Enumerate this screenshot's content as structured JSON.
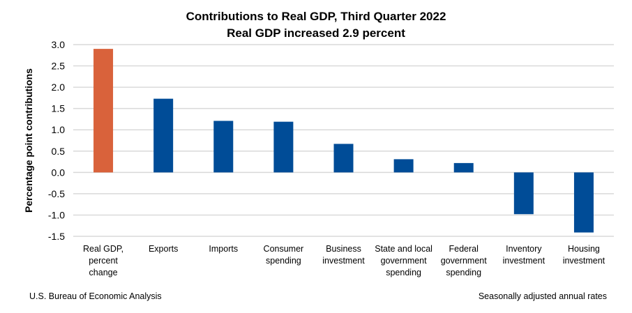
{
  "chart_data": {
    "type": "bar",
    "title": "Contributions to Real GDP, Third Quarter 2022",
    "subtitle": "Real GDP increased 2.9 percent",
    "xlabel": "",
    "ylabel": "Percentage point contributions",
    "ylim": [
      -1.5,
      3.0
    ],
    "yticks": [
      3.0,
      2.5,
      2.0,
      1.5,
      1.0,
      0.5,
      0.0,
      -0.5,
      -1.0,
      -1.5
    ],
    "grid": true,
    "categories": [
      [
        "Real GDP,",
        "percent",
        "change"
      ],
      [
        "Exports"
      ],
      [
        "Imports"
      ],
      [
        "Consumer",
        "spending"
      ],
      [
        "Business",
        "investment"
      ],
      [
        "State and local",
        "government",
        "spending"
      ],
      [
        "Federal",
        "government",
        "spending"
      ],
      [
        "Inventory",
        "investment"
      ],
      [
        "Housing",
        "investment"
      ]
    ],
    "values": [
      2.9,
      1.73,
      1.21,
      1.19,
      0.67,
      0.31,
      0.22,
      -0.98,
      -1.41
    ],
    "colors": {
      "highlight": "#D9623B",
      "bar": "#004C97",
      "grid": "#D9D9D9"
    }
  },
  "footer": {
    "source": "U.S. Bureau of Economic Analysis",
    "note": "Seasonally adjusted annual rates"
  }
}
